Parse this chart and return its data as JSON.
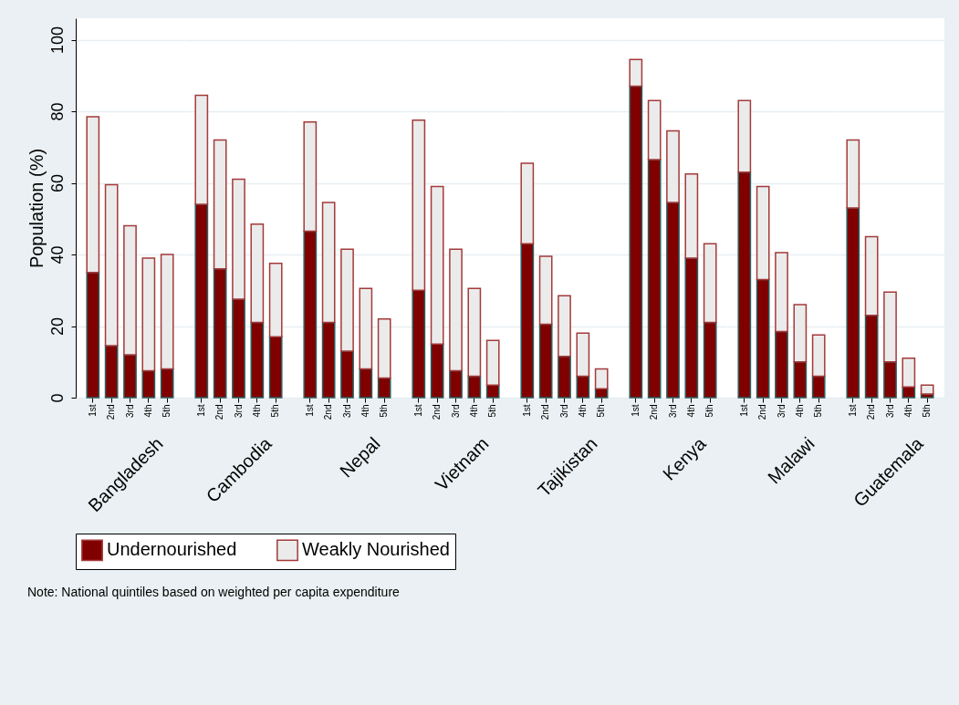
{
  "chart_data": [
    {
      "type": "bar",
      "stacked": true,
      "xlabel": "Bangladesh",
      "ylabel": "Population (%)",
      "categories": [
        "1st",
        "2nd",
        "3rd",
        "4th",
        "5th"
      ],
      "ylim": [
        0,
        106
      ],
      "yticks": [
        0,
        20,
        40,
        60,
        80,
        100
      ],
      "grid": "y",
      "legend": "bottom",
      "annotations": [
        "Note: National quintiles based on weighted per capita expenditure"
      ],
      "series": [
        {
          "name": "Undernourished",
          "color": "#800000",
          "values": [
            35,
            14.5,
            12,
            7.5,
            8
          ]
        },
        {
          "name": "Weakly Nourished",
          "color": "#ebebeb",
          "values": [
            43.5,
            45,
            36,
            31.5,
            32
          ]
        }
      ]
    },
    {
      "type": "bar",
      "stacked": true,
      "xlabel": "Cambodia",
      "categories": [
        "1st",
        "2nd",
        "3rd",
        "4th",
        "5th"
      ],
      "ylim": [
        0,
        106
      ],
      "yticks": [
        0,
        20,
        40,
        60,
        80,
        100
      ],
      "grid": "y",
      "tick_labels": "x",
      "legend": "bottom",
      "series": [
        {
          "name": "Undernourished",
          "color": "#800000",
          "values": [
            54,
            36,
            27.5,
            21,
            17
          ]
        },
        {
          "name": "Weakly Nourished",
          "color": "#ebebeb",
          "values": [
            30.5,
            36,
            33.5,
            27.5,
            20.5
          ]
        }
      ]
    },
    {
      "type": "bar",
      "stacked": true,
      "xlabel": "Nepal",
      "categories": [
        "1st",
        "2nd",
        "3rd",
        "4th",
        "5th"
      ],
      "ylim": [
        0,
        106
      ],
      "yticks": [
        0,
        20,
        40,
        60,
        80,
        100
      ],
      "grid": "y",
      "tick_labels": "x",
      "legend": "bottom",
      "series": [
        {
          "name": "Undernourished",
          "color": "#800000",
          "values": [
            46.5,
            21,
            13,
            8,
            5.5
          ]
        },
        {
          "name": "Weakly Nourished",
          "color": "#ebebeb",
          "values": [
            30.5,
            33.5,
            28.5,
            22.5,
            16.5
          ]
        }
      ]
    },
    {
      "type": "bar",
      "stacked": true,
      "xlabel": "Vietnam",
      "categories": [
        "1st",
        "2nd",
        "3rd",
        "4th",
        "5th"
      ],
      "ylim": [
        0,
        106
      ],
      "yticks": [
        0,
        20,
        40,
        60,
        80,
        100
      ],
      "grid": "y",
      "tick_labels": "x",
      "legend": "bottom",
      "series": [
        {
          "name": "Undernourished",
          "color": "#800000",
          "values": [
            30,
            15,
            7.5,
            6,
            3.5
          ]
        },
        {
          "name": "Weakly Nourished",
          "color": "#ebebeb",
          "values": [
            47.5,
            44,
            34,
            24.5,
            12.5
          ]
        }
      ]
    },
    {
      "type": "bar",
      "stacked": true,
      "xlabel": "Tajikistan",
      "categories": [
        "1st",
        "2nd",
        "3rd",
        "4th",
        "5th"
      ],
      "ylim": [
        0,
        106
      ],
      "yticks": [
        0,
        20,
        40,
        60,
        80,
        100
      ],
      "grid": "y",
      "tick_labels": "x",
      "legend": "bottom",
      "series": [
        {
          "name": "Undernourished",
          "color": "#800000",
          "values": [
            43,
            20.5,
            11.5,
            6,
            2.5
          ]
        },
        {
          "name": "Weakly Nourished",
          "color": "#ebebeb",
          "values": [
            22.5,
            19,
            17,
            12,
            5.5
          ]
        }
      ]
    },
    {
      "type": "bar",
      "stacked": true,
      "xlabel": "Kenya",
      "categories": [
        "1st",
        "2nd",
        "3rd",
        "4th",
        "5th"
      ],
      "ylim": [
        0,
        106
      ],
      "yticks": [
        0,
        20,
        40,
        60,
        80,
        100
      ],
      "grid": "y",
      "tick_labels": "x",
      "legend": "bottom",
      "series": [
        {
          "name": "Undernourished",
          "color": "#800000",
          "values": [
            87,
            66.5,
            54.5,
            39,
            21
          ]
        },
        {
          "name": "Weakly Nourished",
          "color": "#ebebeb",
          "values": [
            7.5,
            16.5,
            20,
            23.5,
            22
          ]
        }
      ]
    },
    {
      "type": "bar",
      "stacked": true,
      "xlabel": "Malawi",
      "categories": [
        "1st",
        "2nd",
        "3rd",
        "4th",
        "5th"
      ],
      "ylim": [
        0,
        106
      ],
      "yticks": [
        0,
        20,
        40,
        60,
        80,
        100
      ],
      "grid": "y",
      "tick_labels": "x",
      "legend": "bottom",
      "series": [
        {
          "name": "Undernourished",
          "color": "#800000",
          "values": [
            63,
            33,
            18.5,
            10,
            6
          ]
        },
        {
          "name": "Weakly Nourished",
          "color": "#ebebeb",
          "values": [
            20,
            26,
            22,
            16,
            11.5
          ]
        }
      ]
    },
    {
      "type": "bar",
      "stacked": true,
      "xlabel": "Guatemala",
      "categories": [
        "1st",
        "2nd",
        "3rd",
        "4th",
        "5th"
      ],
      "ylim": [
        0,
        106
      ],
      "yticks": [
        0,
        20,
        40,
        60,
        80,
        100
      ],
      "grid": "y",
      "tick_labels": "x",
      "legend": "bottom",
      "series": [
        {
          "name": "Undernourished",
          "color": "#800000",
          "values": [
            53,
            23,
            10,
            3,
            1
          ]
        },
        {
          "name": "Weakly Nourished",
          "color": "#ebebeb",
          "values": [
            19,
            22,
            19.5,
            8,
            2.5
          ]
        }
      ]
    }
  ]
}
